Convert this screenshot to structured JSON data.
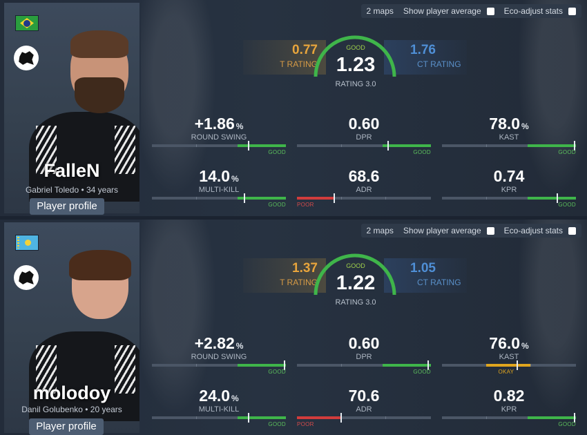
{
  "options": {
    "maps": "2 maps",
    "show_avg": "Show player average",
    "eco": "Eco-adjust stats"
  },
  "colors": {
    "good": "#3fb54a",
    "poor": "#d13c3c",
    "okay": "#e0a51e",
    "t": "#e8a53c",
    "ct": "#4f8fd6"
  },
  "players": [
    {
      "name": "FalleN",
      "sub": "Gabriel Toledo • 34 years",
      "profile_button": "Player profile",
      "flag_icon": "brazil-flag-icon",
      "team_icon": "furia-panther-icon",
      "t_rating": "0.77",
      "t_label": "T RATING",
      "ct_rating": "1.76",
      "ct_label": "CT RATING",
      "rating": "1.23",
      "rating_label": "RATING 3.0",
      "rating_grade": "GOOD",
      "stats": [
        {
          "value": "+1.86",
          "pct": "%",
          "label": "ROUND SWING",
          "grade": "GOOD",
          "level": 0.72
        },
        {
          "value": "0.60",
          "pct": "",
          "label": "DPR",
          "grade": "GOOD",
          "level": 0.68
        },
        {
          "value": "78.0",
          "pct": "%",
          "label": "KAST",
          "grade": "GOOD",
          "level": 0.99
        },
        {
          "value": "14.0",
          "pct": "%",
          "label": "MULTI-KILL",
          "grade": "GOOD",
          "level": 0.69
        },
        {
          "value": "68.6",
          "pct": "",
          "label": "ADR",
          "grade": "POOR",
          "level": 0.28
        },
        {
          "value": "0.74",
          "pct": "",
          "label": "KPR",
          "grade": "GOOD",
          "level": 0.86
        }
      ]
    },
    {
      "name": "molodoy",
      "sub": "Danil Golubenko • 20 years",
      "profile_button": "Player profile",
      "flag_icon": "kazakhstan-flag-icon",
      "team_icon": "furia-panther-icon",
      "t_rating": "1.37",
      "t_label": "T RATING",
      "ct_rating": "1.05",
      "ct_label": "CT RATING",
      "rating": "1.22",
      "rating_label": "RATING 3.0",
      "rating_grade": "GOOD",
      "stats": [
        {
          "value": "+2.82",
          "pct": "%",
          "label": "ROUND SWING",
          "grade": "GOOD",
          "level": 0.99
        },
        {
          "value": "0.60",
          "pct": "",
          "label": "DPR",
          "grade": "GOOD",
          "level": 0.98
        },
        {
          "value": "76.0",
          "pct": "%",
          "label": "KAST",
          "grade": "OKAY",
          "level": 0.56
        },
        {
          "value": "24.0",
          "pct": "%",
          "label": "MULTI-KILL",
          "grade": "GOOD",
          "level": 0.72
        },
        {
          "value": "70.6",
          "pct": "",
          "label": "ADR",
          "grade": "POOR",
          "level": 0.33
        },
        {
          "value": "0.82",
          "pct": "",
          "label": "KPR",
          "grade": "GOOD",
          "level": 0.99
        }
      ]
    }
  ]
}
